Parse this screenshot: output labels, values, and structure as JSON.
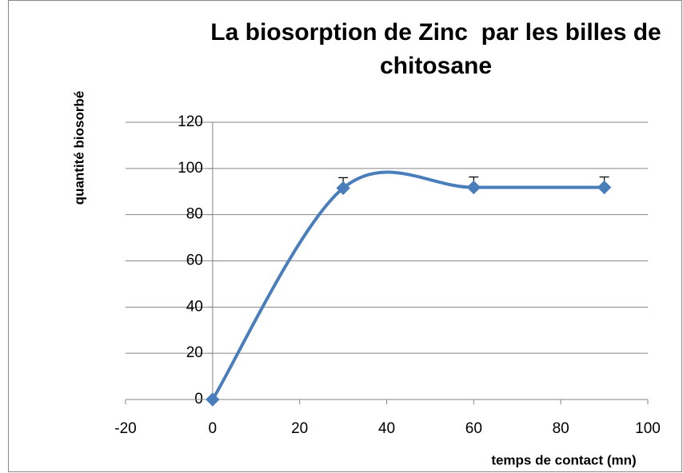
{
  "chart_data": {
    "type": "scatter",
    "title": "La biosorption de Zinc  par les billes de chitosane",
    "x_label": "temps  de contact (mn)",
    "y_label": "quantité biosorbé",
    "series": [
      {
        "color": "#4a7ebb",
        "x": [
          0,
          30,
          60,
          90
        ],
        "values": [
          0,
          91.5,
          91.8,
          91.8
        ],
        "errors": [
          0,
          4.5,
          4.5,
          4.5
        ]
      }
    ],
    "xlim": [
      -20,
      100
    ],
    "xticks": [
      -20,
      0,
      20,
      40,
      60,
      80,
      100
    ],
    "ylim": [
      0,
      120
    ],
    "yticks": [
      0,
      20,
      40,
      60,
      80,
      100,
      120
    ],
    "grid": true,
    "smooth": true
  }
}
